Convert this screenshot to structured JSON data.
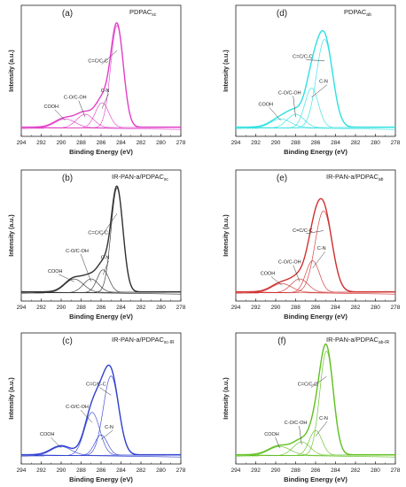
{
  "figure": {
    "x_tick_labels": [
      "294",
      "292",
      "290",
      "288",
      "286",
      "284",
      "282",
      "280",
      "278"
    ],
    "xlabel": "Binding Energy (eV)",
    "ylabel": "Intensity (a.u.)"
  },
  "chart_data": [
    {
      "type": "line",
      "panel_label": "(a)",
      "sample": "PDPAC",
      "subscript": "sc",
      "color": "#e040c8",
      "xlabel": "Binding Energy (eV)",
      "ylabel": "Intensity (a.u.)",
      "xlim": [
        294,
        278
      ],
      "ylim": [
        0,
        1
      ],
      "series": [
        {
          "name": "C=C/C-C",
          "center": 284.4,
          "height": 0.9,
          "fwhm": 1.5
        },
        {
          "name": "C-N",
          "center": 285.9,
          "height": 0.22,
          "fwhm": 1.6
        },
        {
          "name": "C-O/C-OH",
          "center": 287.6,
          "height": 0.12,
          "fwhm": 2.0
        },
        {
          "name": "COOH",
          "center": 289.6,
          "height": 0.08,
          "fwhm": 2.4
        }
      ],
      "annotations": [
        "C=C/C-C",
        "C-N",
        "C-O/C-OH",
        "COOH"
      ]
    },
    {
      "type": "line",
      "panel_label": "(d)",
      "sample": "PDPAC",
      "subscript": "ab",
      "color": "#30e0e0",
      "xlabel": "Binding Energy (eV)",
      "ylabel": "Intensity (a.u.)",
      "xlim": [
        294,
        278
      ],
      "ylim": [
        0,
        1
      ],
      "series": [
        {
          "name": "C=C/C-C",
          "center": 285.1,
          "height": 0.78,
          "fwhm": 1.9
        },
        {
          "name": "C-N",
          "center": 286.4,
          "height": 0.35,
          "fwhm": 1.6
        },
        {
          "name": "C-O/C-OH",
          "center": 288.0,
          "height": 0.12,
          "fwhm": 2.0
        },
        {
          "name": "COOH",
          "center": 289.5,
          "height": 0.08,
          "fwhm": 2.4
        }
      ],
      "annotations": [
        "C=C/C-C",
        "C-N",
        "C-O/C-OH",
        "COOH"
      ]
    },
    {
      "type": "line",
      "panel_label": "(b)",
      "sample": "IR-PAN-a/PDPAC",
      "subscript": "sc",
      "color": "#303030",
      "xlabel": "Binding Energy (eV)",
      "ylabel": "Intensity (a.u.)",
      "xlim": [
        294,
        278
      ],
      "ylim": [
        0,
        1
      ],
      "series": [
        {
          "name": "C=C/C-C",
          "center": 284.4,
          "height": 0.92,
          "fwhm": 1.4
        },
        {
          "name": "C-N",
          "center": 285.8,
          "height": 0.2,
          "fwhm": 1.4
        },
        {
          "name": "C-O/C-OH",
          "center": 287.0,
          "height": 0.12,
          "fwhm": 1.8
        },
        {
          "name": "COOH",
          "center": 288.7,
          "height": 0.12,
          "fwhm": 2.2
        }
      ],
      "annotations": [
        "C=C/C-C",
        "C-N",
        "C-O/C-OH",
        "COOH"
      ]
    },
    {
      "type": "line",
      "panel_label": "(e)",
      "sample": "IR-PAN-a/PDPAC",
      "subscript": "ab",
      "color": "#d03030",
      "xlabel": "Binding Energy (eV)",
      "ylabel": "Intensity (a.u.)",
      "xlim": [
        294,
        278
      ],
      "ylim": [
        0,
        1
      ],
      "series": [
        {
          "name": "C=C/C-C",
          "center": 285.2,
          "height": 0.72,
          "fwhm": 2.0
        },
        {
          "name": "C-N",
          "center": 286.3,
          "height": 0.28,
          "fwhm": 1.6
        },
        {
          "name": "C-O/C-OH",
          "center": 287.6,
          "height": 0.12,
          "fwhm": 2.0
        },
        {
          "name": "COOH",
          "center": 289.4,
          "height": 0.08,
          "fwhm": 2.4
        }
      ],
      "annotations": [
        "C=C/C-C",
        "C-N",
        "C-O/C-OH",
        "COOH"
      ]
    },
    {
      "type": "line",
      "panel_label": "(c)",
      "sample": "IR-PAN-a/PDPAC",
      "subscript": "sc-IR",
      "color": "#3040d0",
      "xlabel": "Binding Energy (eV)",
      "ylabel": "Intensity (a.u.)",
      "xlim": [
        294,
        278
      ],
      "ylim": [
        0,
        1
      ],
      "series": [
        {
          "name": "C=C/C-C",
          "center": 285.0,
          "height": 0.7,
          "fwhm": 1.8
        },
        {
          "name": "C-N",
          "center": 286.0,
          "height": 0.18,
          "fwhm": 1.5
        },
        {
          "name": "C-O/C-OH",
          "center": 286.9,
          "height": 0.38,
          "fwhm": 1.8
        },
        {
          "name": "COOH",
          "center": 290.0,
          "height": 0.08,
          "fwhm": 2.4
        }
      ],
      "annotations": [
        "C=C/C-C",
        "C-N",
        "C-O/C-OH",
        "COOH"
      ]
    },
    {
      "type": "line",
      "panel_label": "(f)",
      "sample": "IR-PAN-a/PDPAC",
      "subscript": "ab-IR",
      "color": "#60c020",
      "xlabel": "Binding Energy (eV)",
      "ylabel": "Intensity (a.u.)",
      "xlim": [
        294,
        278
      ],
      "ylim": [
        0,
        1
      ],
      "series": [
        {
          "name": "C=C/C-C",
          "center": 284.9,
          "height": 0.92,
          "fwhm": 1.6
        },
        {
          "name": "C-N",
          "center": 286.0,
          "height": 0.22,
          "fwhm": 1.5
        },
        {
          "name": "C-O/C-OH",
          "center": 287.4,
          "height": 0.12,
          "fwhm": 2.0
        },
        {
          "name": "COOH",
          "center": 289.6,
          "height": 0.08,
          "fwhm": 2.6
        }
      ],
      "annotations": [
        "C=C/C-C",
        "C-N",
        "C-O/C-OH",
        "COOH"
      ]
    }
  ]
}
